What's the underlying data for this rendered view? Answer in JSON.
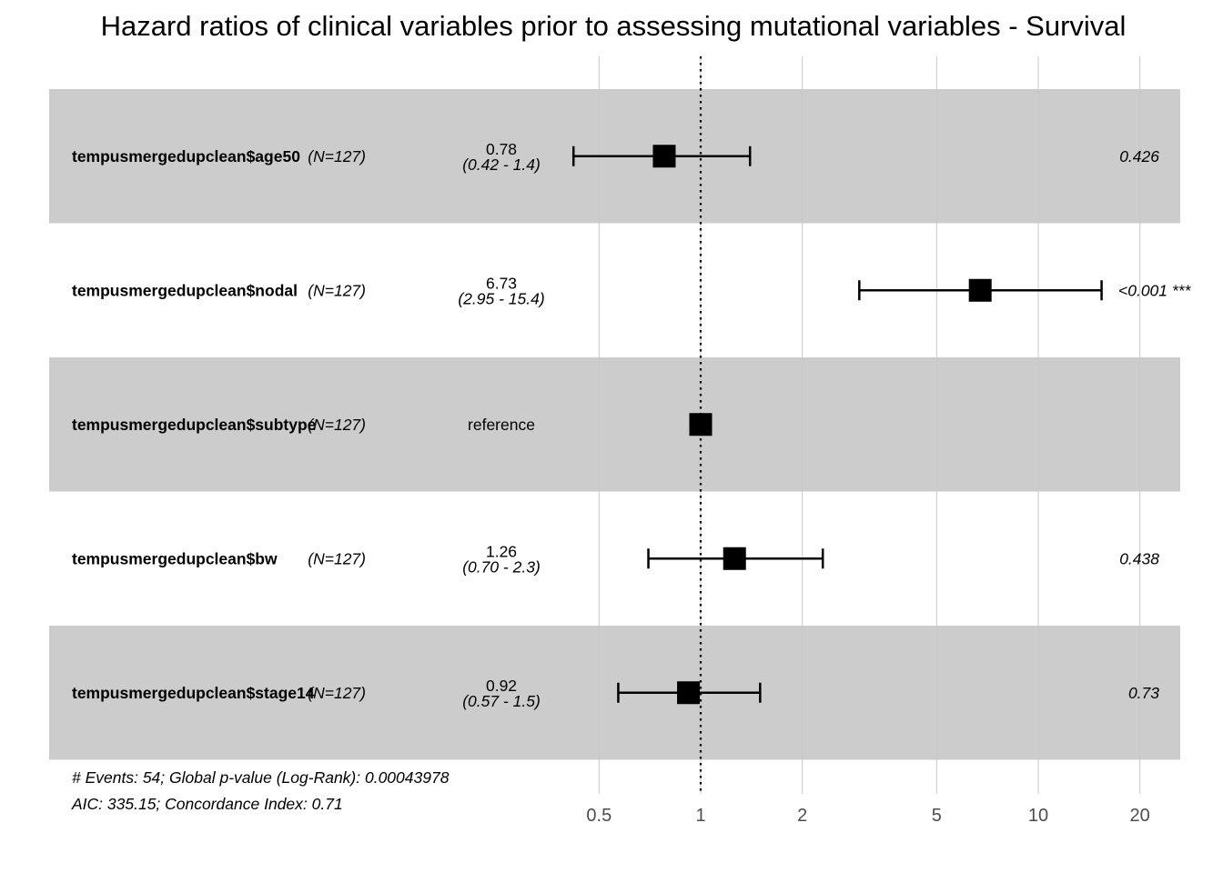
{
  "chart_data": {
    "type": "forest",
    "title": "Hazard ratios of clinical variables prior to assessing mutational variables - Survival",
    "x_scale": "log",
    "xlim": [
      0.37,
      27
    ],
    "x_ticks": [
      0.5,
      1,
      2,
      5,
      10,
      20
    ],
    "x_tick_labels": [
      "0.5",
      "1",
      "2",
      "5",
      "10",
      "20"
    ],
    "reference_line": 1,
    "grid": true,
    "rows": [
      {
        "variable": "tempusmergedupclean$age50",
        "n": "(N=127)",
        "hr": 0.78,
        "lower": 0.42,
        "upper": 1.4,
        "hr_label": "0.78",
        "ci_label": "(0.42 -  1.4)",
        "p_label": "0.426",
        "shaded": true
      },
      {
        "variable": "tempusmergedupclean$nodal",
        "n": "(N=127)",
        "hr": 6.73,
        "lower": 2.95,
        "upper": 15.4,
        "hr_label": "6.73",
        "ci_label": "(2.95 - 15.4)",
        "p_label": "<0.001 ***",
        "shaded": false
      },
      {
        "variable": "tempusmergedupclean$subtype",
        "n": "(N=127)",
        "hr": 1.0,
        "lower": null,
        "upper": null,
        "hr_label": "reference",
        "ci_label": "",
        "p_label": "",
        "shaded": true
      },
      {
        "variable": "tempusmergedupclean$bw",
        "n": "(N=127)",
        "hr": 1.26,
        "lower": 0.7,
        "upper": 2.3,
        "hr_label": "1.26",
        "ci_label": "(0.70 -  2.3)",
        "p_label": "0.438",
        "shaded": false
      },
      {
        "variable": "tempusmergedupclean$stage14",
        "n": "(N=127)",
        "hr": 0.92,
        "lower": 0.57,
        "upper": 1.5,
        "hr_label": "0.92",
        "ci_label": "(0.57 -  1.5)",
        "p_label": "0.73",
        "shaded": true
      }
    ],
    "footnotes": [
      "# Events: 54; Global p-value (Log-Rank): 0.00043978",
      "AIC: 335.15; Concordance Index: 0.71"
    ],
    "colors": {
      "shade": "#cccccc",
      "grid": "#c8c8c8",
      "marker": "#000000",
      "tick_text": "#4d4d4d"
    }
  }
}
